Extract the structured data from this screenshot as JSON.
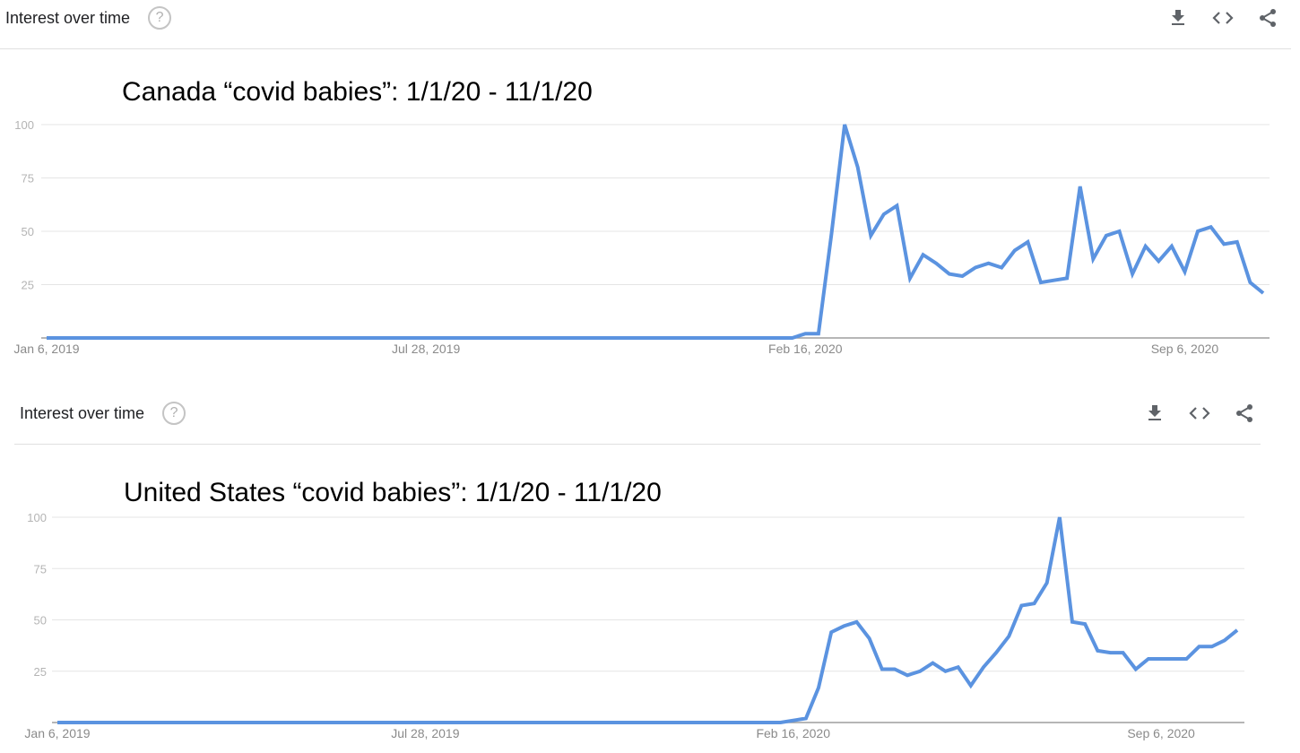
{
  "panels": [
    {
      "header_title": "Interest over time",
      "help_glyph": "?",
      "icons": [
        "download-icon",
        "embed-icon",
        "share-icon"
      ],
      "chart_caption": "Canada “covid babies”: 1/1/20 - 11/1/20"
    },
    {
      "header_title": "Interest over time",
      "help_glyph": "?",
      "icons": [
        "download-icon",
        "embed-icon",
        "share-icon"
      ],
      "chart_caption": "United States “covid babies”: 1/1/20 - 11/1/20"
    }
  ],
  "colors": {
    "line": "#5b93e0",
    "grid": "#e5e5e5",
    "axis": "#9e9e9e"
  },
  "chart_data": [
    {
      "type": "line",
      "title": "Canada “covid babies”: 1/1/20 - 11/1/20",
      "x_tick_labels": [
        "Jan 6, 2019",
        "Jul 28, 2019",
        "Feb 16, 2020",
        "Sep 6, 2020"
      ],
      "x_tick_weeks": [
        0,
        29,
        58,
        87
      ],
      "y_ticks": [
        25,
        50,
        75,
        100
      ],
      "ylim": [
        0,
        100
      ],
      "grid": true,
      "series": [
        {
          "values": [
            0,
            0,
            0,
            0,
            0,
            0,
            0,
            0,
            0,
            0,
            0,
            0,
            0,
            0,
            0,
            0,
            0,
            0,
            0,
            0,
            0,
            0,
            0,
            0,
            0,
            0,
            0,
            0,
            0,
            0,
            0,
            0,
            0,
            0,
            0,
            0,
            0,
            0,
            0,
            0,
            0,
            0,
            0,
            0,
            0,
            0,
            0,
            0,
            0,
            0,
            0,
            0,
            0,
            0,
            0,
            0,
            0,
            0,
            2,
            2,
            49,
            100,
            80,
            48,
            58,
            62,
            28,
            39,
            35,
            30,
            29,
            33,
            35,
            33,
            41,
            45,
            26,
            27,
            28,
            71,
            37,
            48,
            50,
            30,
            43,
            36,
            43,
            31,
            50,
            52,
            44,
            45,
            26,
            21
          ]
        }
      ]
    },
    {
      "type": "line",
      "title": "United States “covid babies”: 1/1/20 - 11/1/20",
      "x_tick_labels": [
        "Jan 6, 2019",
        "Jul 28, 2019",
        "Feb 16, 2020",
        "Sep 6, 2020"
      ],
      "x_tick_weeks": [
        0,
        29,
        58,
        87
      ],
      "y_ticks": [
        25,
        50,
        75,
        100
      ],
      "ylim": [
        0,
        100
      ],
      "grid": true,
      "series": [
        {
          "values": [
            0,
            0,
            0,
            0,
            0,
            0,
            0,
            0,
            0,
            0,
            0,
            0,
            0,
            0,
            0,
            0,
            0,
            0,
            0,
            0,
            0,
            0,
            0,
            0,
            0,
            0,
            0,
            0,
            0,
            0,
            0,
            0,
            0,
            0,
            0,
            0,
            0,
            0,
            0,
            0,
            0,
            0,
            0,
            0,
            0,
            0,
            0,
            0,
            0,
            0,
            0,
            0,
            0,
            0,
            0,
            0,
            0,
            0,
            1,
            2,
            17,
            44,
            47,
            49,
            41,
            26,
            26,
            23,
            25,
            29,
            25,
            27,
            18,
            27,
            34,
            42,
            57,
            58,
            68,
            100,
            49,
            48,
            35,
            34,
            34,
            26,
            31,
            31,
            31,
            31,
            37,
            37,
            40,
            45
          ]
        }
      ]
    }
  ]
}
